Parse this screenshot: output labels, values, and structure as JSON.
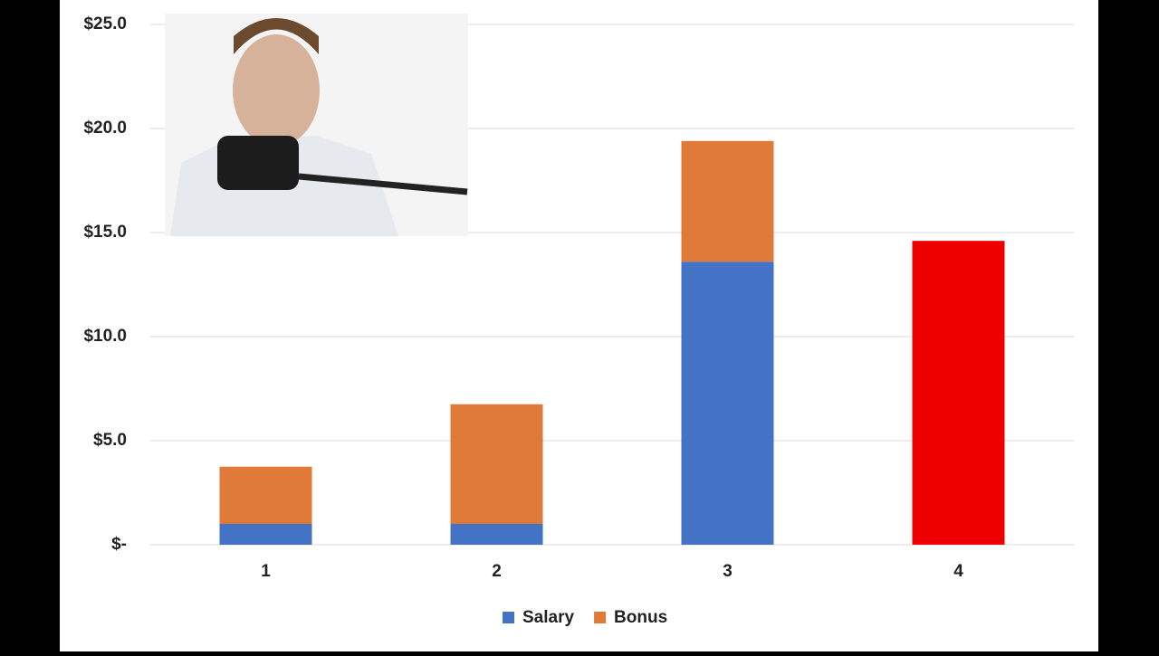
{
  "chart_data": {
    "type": "stacked-bar",
    "categories": [
      "1",
      "2",
      "3",
      "4"
    ],
    "series": [
      {
        "name": "Salary",
        "color": "#4472c4",
        "colors": [
          "#4472c4",
          "#4472c4",
          "#4472c4",
          "#ee0000"
        ],
        "values": [
          1.0,
          1.0,
          13.6,
          14.6
        ]
      },
      {
        "name": "Bonus",
        "color": "#e07a38",
        "values": [
          2.75,
          5.75,
          5.8,
          null
        ]
      }
    ],
    "ylim": [
      0,
      25
    ],
    "yticks": [
      {
        "value": 0,
        "label": "$-"
      },
      {
        "value": 5,
        "label": "$5.0"
      },
      {
        "value": 10,
        "label": "$10.0"
      },
      {
        "value": 15,
        "label": "$15.0"
      },
      {
        "value": 20,
        "label": "$20.0"
      },
      {
        "value": 25,
        "label": "$25.0"
      }
    ],
    "grid": true,
    "legend": "bottom"
  }
}
